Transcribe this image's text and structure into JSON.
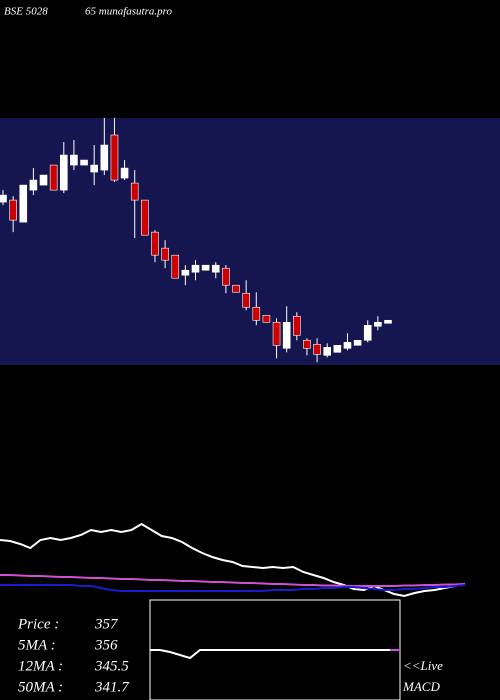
{
  "chart_data": [
    {
      "type": "candlestick",
      "title": "BSE 5028",
      "subtitle": "65 munafasutra.pro",
      "categories": [
        null,
        null,
        null,
        null,
        null,
        null,
        null,
        null,
        null,
        null,
        null,
        null,
        null,
        null,
        null,
        null,
        null,
        null,
        null,
        null,
        null,
        null,
        null,
        null,
        null,
        null,
        null,
        null,
        null,
        null,
        null,
        null,
        null,
        null,
        null,
        null,
        null,
        null,
        null
      ],
      "open": [
        392.8,
        393.4,
        386.8,
        396.4,
        397.9,
        403.9,
        396.4,
        403.9,
        403.9,
        401.8,
        402.4,
        412.9,
        400,
        398.5,
        393.4,
        383.8,
        379,
        376.9,
        370.9,
        371.8,
        372.4,
        371.8,
        373,
        367.9,
        365.5,
        361.3,
        358.9,
        356.8,
        349,
        358.6,
        351.4,
        350.2,
        346.9,
        347.8,
        349,
        349.9,
        351.4,
        355.6,
        356.5
      ],
      "high": [
        396.4,
        394.6,
        397.9,
        403,
        400.9,
        403.9,
        410.8,
        411.4,
        405.4,
        409.9,
        418,
        418,
        405.4,
        402.4,
        393.4,
        384.4,
        381.4,
        376.9,
        373.9,
        375.4,
        373.9,
        374.8,
        373.9,
        367.9,
        369.4,
        365.8,
        358.9,
        358,
        361.6,
        359.8,
        352,
        352,
        350.5,
        349.9,
        353.5,
        351.4,
        357.4,
        358.6,
        357.4
      ],
      "low": [
        391.9,
        383.8,
        386.8,
        394.9,
        397.9,
        396.4,
        395.5,
        402.4,
        403.9,
        397.9,
        400.9,
        398.8,
        399.4,
        382,
        382.9,
        374.8,
        373,
        370,
        367.9,
        369.4,
        372.4,
        370,
        365.5,
        365.8,
        360.4,
        355.9,
        356.8,
        346,
        347.8,
        351.4,
        346.9,
        344.8,
        346.3,
        347.8,
        348.4,
        349.9,
        350.8,
        354.4,
        356.5
      ],
      "close": [
        394.9,
        387.4,
        397.9,
        399.4,
        400.9,
        396.4,
        406.9,
        406.9,
        405.4,
        403.9,
        409.9,
        399.4,
        403,
        393.4,
        382.9,
        376.9,
        375.4,
        370,
        372.4,
        373.9,
        373.9,
        373.9,
        367.9,
        365.8,
        361.3,
        357.4,
        356.8,
        349.9,
        356.8,
        352.9,
        349,
        347.2,
        349.3,
        349.9,
        350.8,
        351.4,
        355.9,
        356.8,
        357.4
      ],
      "ylim": [
        344,
        418
      ],
      "up_color": "#ffffff",
      "down_color": "#cc0000",
      "background": "#151550"
    },
    {
      "type": "line",
      "ylim": [
        0,
        100
      ],
      "series": [
        {
          "color": "#ffffff",
          "values": [
            70,
            69,
            66,
            62,
            70,
            72,
            70,
            72,
            75,
            80,
            78,
            80,
            78,
            80,
            86,
            80,
            74,
            72,
            68,
            62,
            57,
            53,
            50,
            48,
            44,
            43,
            42,
            43,
            42,
            43,
            38,
            35,
            32,
            28,
            25,
            21,
            20,
            24,
            20,
            16,
            14,
            17,
            19,
            20,
            22,
            24,
            26
          ]
        },
        {
          "color": "#d050d0",
          "values": [
            35,
            35,
            34.5,
            34,
            34,
            33.5,
            33,
            33,
            32.5,
            32,
            32,
            31.5,
            31,
            31,
            30.5,
            30,
            30,
            29.5,
            29,
            29,
            28.5,
            28,
            28,
            27.5,
            27,
            27,
            26.5,
            26,
            26,
            25.5,
            25,
            25,
            24.5,
            24.5,
            24,
            24,
            24,
            24,
            24,
            24,
            24.5,
            24.5,
            25,
            25,
            25.5,
            25.5,
            26
          ]
        },
        {
          "color": "#1a1ad0",
          "values": [
            25,
            25,
            25,
            25,
            25,
            25,
            25,
            25,
            24,
            24,
            22,
            20,
            19,
            19,
            19,
            19,
            19,
            19,
            19,
            19,
            19,
            19,
            19,
            19,
            19,
            19,
            19,
            20,
            20,
            20,
            21,
            21,
            22,
            22,
            23,
            23,
            22,
            21,
            20,
            20,
            21,
            21,
            22,
            23,
            23,
            24,
            25
          ]
        }
      ],
      "annotations": [
        {
          "label": "Price   :",
          "value": 357
        },
        {
          "label": "5MA :",
          "value": 356
        },
        {
          "label": "12MA :",
          "value": 345.5
        },
        {
          "label": "50MA :",
          "value": 341.7
        }
      ]
    },
    {
      "type": "line",
      "ylim": [
        -50,
        50
      ],
      "series": [
        {
          "color": "#ffffff",
          "values": [
            0,
            0,
            -2,
            -5,
            -8,
            0,
            0,
            0,
            0,
            0,
            0,
            0,
            0,
            0,
            0,
            0,
            0,
            0,
            0,
            0,
            0,
            0,
            0,
            0,
            0,
            0
          ]
        },
        {
          "color": "#d050d0",
          "values": [
            null,
            null,
            null,
            null,
            null,
            null,
            null,
            null,
            null,
            null,
            null,
            null,
            null,
            null,
            null,
            null,
            null,
            null,
            null,
            null,
            null,
            null,
            null,
            null,
            0,
            0
          ]
        }
      ],
      "annotations": [
        "<<Live",
        "MACD"
      ]
    }
  ]
}
